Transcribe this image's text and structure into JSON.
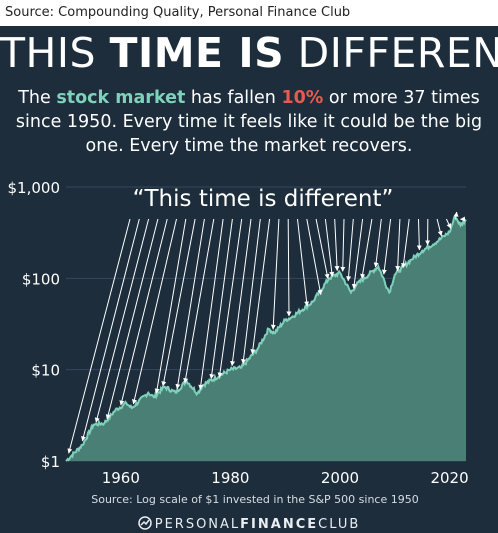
{
  "source_line": "Source: Compounding Quality, Personal Finance Club",
  "title": {
    "thin_1": "THIS ",
    "bold": "TIME IS",
    "thin_2": " DIFFERENT"
  },
  "subtitle": {
    "pre": "The ",
    "highlight_green": "stock market",
    "mid": " has fallen ",
    "highlight_red": "10%",
    "post": " or more 37 times since 1950. Every time it feels like it could be the big one. Every time the market recovers."
  },
  "colors": {
    "background": "#1d2d3c",
    "area_fill": "#4a7f75",
    "line": "#7fd1b9",
    "arrows": "#ffffff",
    "highlight_green": "#7fd1b9",
    "highlight_red": "#e85a4f"
  },
  "chart_data": {
    "type": "area",
    "scale": "log",
    "title": "",
    "annotation": "“This time is different”",
    "caption": "Source: Log scale of $1 invested in the S&P 500 since 1950",
    "y_ticks": [
      {
        "value": 1,
        "label": "$1"
      },
      {
        "value": 10,
        "label": "$10"
      },
      {
        "value": 100,
        "label": "$100"
      },
      {
        "value": 1000,
        "label": "$1,000"
      }
    ],
    "x_ticks": [
      {
        "value": 1960,
        "label": "1960"
      },
      {
        "value": 1980,
        "label": "1980"
      },
      {
        "value": 2000,
        "label": "2000"
      },
      {
        "value": 2020,
        "label": "2020"
      }
    ],
    "xlim": [
      1950,
      2023
    ],
    "ylim": [
      1,
      1000
    ],
    "series": [
      {
        "x": [
          1950,
          1953,
          1955,
          1957,
          1959,
          1961,
          1962,
          1965,
          1966,
          1968,
          1970,
          1972,
          1974,
          1975,
          1980,
          1982,
          1985,
          1987,
          1988,
          1990,
          1991,
          1995,
          1998,
          2000,
          2002,
          2003,
          2007,
          2009,
          2010,
          2013,
          2015,
          2018,
          2019,
          2020,
          2021,
          2022,
          2023
        ],
        "y": [
          1.0,
          1.5,
          2.5,
          2.6,
          3.6,
          4.3,
          3.8,
          5.6,
          5.0,
          6.5,
          5.6,
          7.6,
          5.5,
          6.8,
          10,
          10.5,
          17,
          28,
          25,
          35,
          37,
          55,
          100,
          115,
          70,
          85,
          135,
          70,
          110,
          160,
          200,
          260,
          290,
          320,
          480,
          380,
          440
        ]
      }
    ],
    "drawdowns": [
      {
        "x": 1950.5,
        "y": 1.1
      },
      {
        "x": 1953.0,
        "y": 1.5
      },
      {
        "x": 1955.5,
        "y": 2.4
      },
      {
        "x": 1957.5,
        "y": 2.6
      },
      {
        "x": 1960.0,
        "y": 3.7
      },
      {
        "x": 1962.3,
        "y": 3.8
      },
      {
        "x": 1966.5,
        "y": 5.0
      },
      {
        "x": 1967.7,
        "y": 6.0
      },
      {
        "x": 1970.3,
        "y": 5.6
      },
      {
        "x": 1971.7,
        "y": 6.5
      },
      {
        "x": 1974.5,
        "y": 5.5
      },
      {
        "x": 1976.5,
        "y": 7.2
      },
      {
        "x": 1978.0,
        "y": 7.5
      },
      {
        "x": 1980.3,
        "y": 10.0
      },
      {
        "x": 1982.3,
        "y": 10.5
      },
      {
        "x": 1984.0,
        "y": 13.5
      },
      {
        "x": 1987.8,
        "y": 25.0
      },
      {
        "x": 1990.7,
        "y": 35.0
      },
      {
        "x": 1994.0,
        "y": 45.0
      },
      {
        "x": 1996.5,
        "y": 60.0
      },
      {
        "x": 1997.8,
        "y": 90.0
      },
      {
        "x": 1998.6,
        "y": 95.0
      },
      {
        "x": 1999.5,
        "y": 110.0
      },
      {
        "x": 2000.5,
        "y": 108.0
      },
      {
        "x": 2001.5,
        "y": 85.0
      },
      {
        "x": 2002.5,
        "y": 70.0
      },
      {
        "x": 2004.0,
        "y": 90.0
      },
      {
        "x": 2006.5,
        "y": 120.0
      },
      {
        "x": 2008.0,
        "y": 100.0
      },
      {
        "x": 2010.5,
        "y": 110.0
      },
      {
        "x": 2011.5,
        "y": 118.0
      },
      {
        "x": 2014.5,
        "y": 185.0
      },
      {
        "x": 2016.0,
        "y": 210.0
      },
      {
        "x": 2018.5,
        "y": 265.0
      },
      {
        "x": 2020.2,
        "y": 320.0
      },
      {
        "x": 2021.3,
        "y": 480.0
      },
      {
        "x": 2022.0,
        "y": 400.0
      }
    ]
  },
  "footer": {
    "thin_1": "PERSONAL",
    "bold": "FINANCE",
    "thin_2": "CLUB"
  }
}
